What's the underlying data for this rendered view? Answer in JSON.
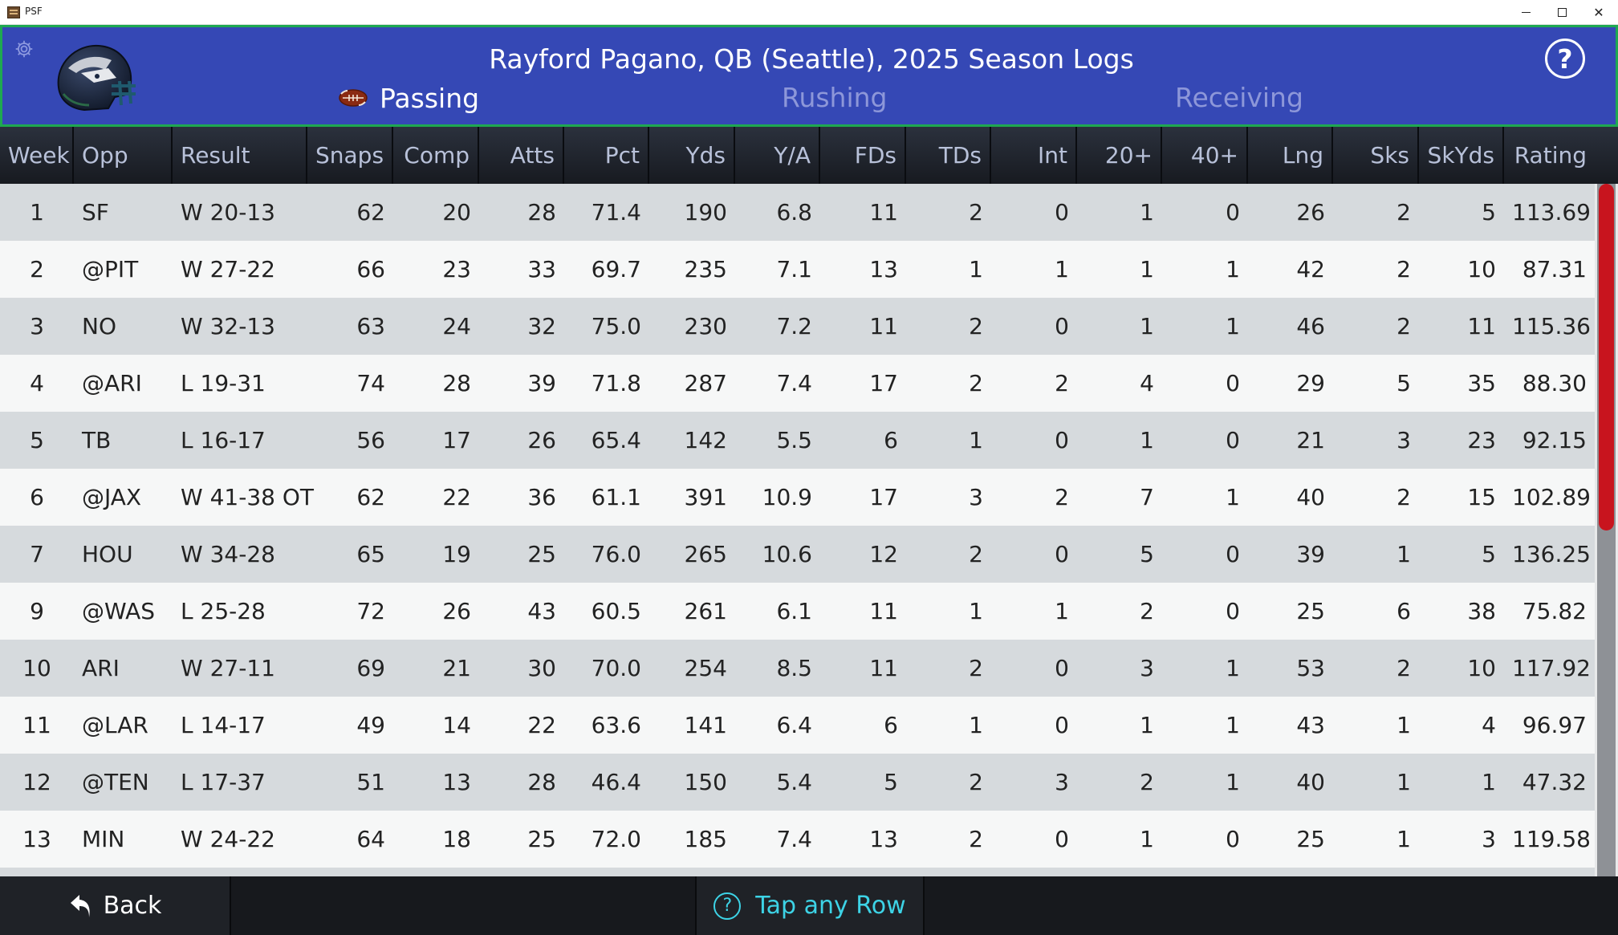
{
  "window": {
    "title": "PSF",
    "controls": [
      "minimize",
      "maximize",
      "close"
    ]
  },
  "header": {
    "title": "Rayford Pagano, QB (Seattle), 2025 Season Logs",
    "help_label": "?",
    "tabs": [
      {
        "label": "Passing",
        "active": true
      },
      {
        "label": "Rushing",
        "active": false
      },
      {
        "label": "Receiving",
        "active": false
      }
    ]
  },
  "table": {
    "columns": [
      "Week",
      "Opp",
      "Result",
      "Snaps",
      "Comp",
      "Atts",
      "Pct",
      "Yds",
      "Y/A",
      "FDs",
      "TDs",
      "Int",
      "20+",
      "40+",
      "Lng",
      "Sks",
      "SkYds",
      "Rating"
    ],
    "rows": [
      [
        "1",
        "SF",
        "W 20-13",
        "62",
        "20",
        "28",
        "71.4",
        "190",
        "6.8",
        "11",
        "2",
        "0",
        "1",
        "0",
        "26",
        "2",
        "5",
        "113.69"
      ],
      [
        "2",
        "@PIT",
        "W 27-22",
        "66",
        "23",
        "33",
        "69.7",
        "235",
        "7.1",
        "13",
        "1",
        "1",
        "1",
        "1",
        "42",
        "2",
        "10",
        "87.31"
      ],
      [
        "3",
        "NO",
        "W 32-13",
        "63",
        "24",
        "32",
        "75.0",
        "230",
        "7.2",
        "11",
        "2",
        "0",
        "1",
        "1",
        "46",
        "2",
        "11",
        "115.36"
      ],
      [
        "4",
        "@ARI",
        "L 19-31",
        "74",
        "28",
        "39",
        "71.8",
        "287",
        "7.4",
        "17",
        "2",
        "2",
        "4",
        "0",
        "29",
        "5",
        "35",
        "88.30"
      ],
      [
        "5",
        "TB",
        "L 16-17",
        "56",
        "17",
        "26",
        "65.4",
        "142",
        "5.5",
        "6",
        "1",
        "0",
        "1",
        "0",
        "21",
        "3",
        "23",
        "92.15"
      ],
      [
        "6",
        "@JAX",
        "W 41-38 OT",
        "62",
        "22",
        "36",
        "61.1",
        "391",
        "10.9",
        "17",
        "3",
        "2",
        "7",
        "1",
        "40",
        "2",
        "15",
        "102.89"
      ],
      [
        "7",
        "HOU",
        "W 34-28",
        "65",
        "19",
        "25",
        "76.0",
        "265",
        "10.6",
        "12",
        "2",
        "0",
        "5",
        "0",
        "39",
        "1",
        "5",
        "136.25"
      ],
      [
        "9",
        "@WAS",
        "L 25-28",
        "72",
        "26",
        "43",
        "60.5",
        "261",
        "6.1",
        "11",
        "1",
        "1",
        "2",
        "0",
        "25",
        "6",
        "38",
        "75.82"
      ],
      [
        "10",
        "ARI",
        "W 27-11",
        "69",
        "21",
        "30",
        "70.0",
        "254",
        "8.5",
        "11",
        "2",
        "0",
        "3",
        "1",
        "53",
        "2",
        "10",
        "117.92"
      ],
      [
        "11",
        "@LAR",
        "L 14-17",
        "49",
        "14",
        "22",
        "63.6",
        "141",
        "6.4",
        "6",
        "1",
        "0",
        "1",
        "1",
        "43",
        "1",
        "4",
        "96.97"
      ],
      [
        "12",
        "@TEN",
        "L 17-37",
        "51",
        "13",
        "28",
        "46.4",
        "150",
        "5.4",
        "5",
        "2",
        "3",
        "2",
        "1",
        "40",
        "1",
        "1",
        "47.32"
      ],
      [
        "13",
        "MIN",
        "W 24-22",
        "64",
        "18",
        "25",
        "72.0",
        "185",
        "7.4",
        "13",
        "2",
        "0",
        "1",
        "0",
        "25",
        "1",
        "3",
        "119.58"
      ]
    ]
  },
  "scroll": {
    "visible_fraction": 0.5,
    "position": 0
  },
  "footer": {
    "back_label": "Back",
    "hint_label": "Tap any Row",
    "hint_icon": "?"
  },
  "colors": {
    "header_bg": "#3548b5",
    "header_border": "#1ea851",
    "active_tab": "#ffffff",
    "inactive_tab": "#8d97d9",
    "row_odd": "#d6dadd",
    "row_even": "#f6f7f7",
    "scroll_thumb": "#c8141e",
    "hint_text": "#3dd3e6"
  },
  "icons": {
    "settings": "gear-icon",
    "team_logo": "helmet-logo",
    "help": "help-circle-icon",
    "passing_tab": "football-icon",
    "back": "back-arrow-icon",
    "hint": "question-circle-icon"
  }
}
